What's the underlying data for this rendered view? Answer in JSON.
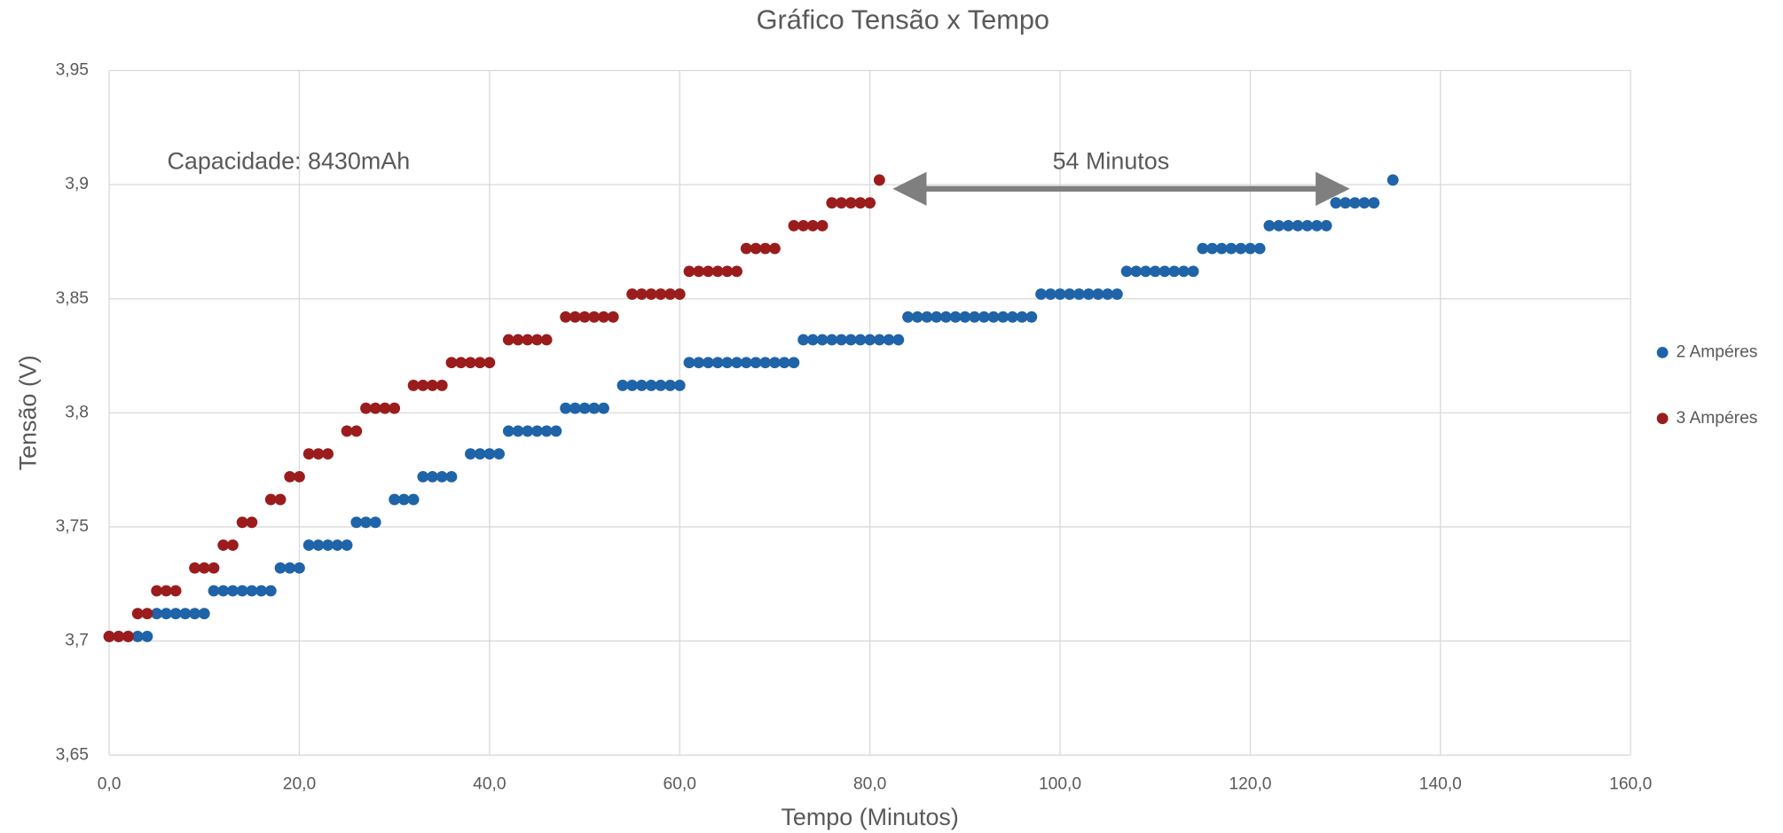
{
  "chart_data": {
    "type": "scatter",
    "title": "Gráfico Tensão x Tempo",
    "x_label": "Tempo (Minutos)",
    "y_label": "Tensão (V)",
    "annotations": [
      "Capacidade: 8430mAh",
      "54 Minutos"
    ],
    "xlim": [
      0,
      160
    ],
    "xticks": [
      {
        "value": 0,
        "label": "0,0"
      },
      {
        "value": 20,
        "label": "20,0"
      },
      {
        "value": 40,
        "label": "40,0"
      },
      {
        "value": 60,
        "label": "60,0"
      },
      {
        "value": 80,
        "label": "80,0"
      },
      {
        "value": 100,
        "label": "100,0"
      },
      {
        "value": 120,
        "label": "120,0"
      },
      {
        "value": 140,
        "label": "140,0"
      },
      {
        "value": 160,
        "label": "160,0"
      }
    ],
    "ylim": [
      3.65,
      3.95
    ],
    "yticks": [
      {
        "value": 3.65,
        "label": "3,65"
      },
      {
        "value": 3.7,
        "label": "3,7"
      },
      {
        "value": 3.75,
        "label": "3,75"
      },
      {
        "value": 3.8,
        "label": "3,8"
      },
      {
        "value": 3.85,
        "label": "3,85"
      },
      {
        "value": 3.9,
        "label": "3,9"
      },
      {
        "value": 3.95,
        "label": "3,95"
      }
    ],
    "grid": true,
    "legend": "right",
    "series": [
      {
        "name": "2 Ampéres",
        "color": "#1f63a8",
        "x": [
          0,
          1,
          2,
          3,
          4,
          5,
          6,
          7,
          8,
          9,
          10,
          11,
          12,
          13,
          14,
          15,
          16,
          17,
          18,
          19,
          20,
          21,
          22,
          23,
          24,
          25,
          26,
          27,
          28,
          30,
          31,
          32,
          33,
          34,
          35,
          36,
          38,
          39,
          40,
          41,
          42,
          43,
          44,
          45,
          46,
          47,
          48,
          49,
          50,
          51,
          52,
          54,
          55,
          56,
          57,
          58,
          59,
          60,
          61,
          62,
          63,
          64,
          65,
          66,
          67,
          68,
          69,
          70,
          71,
          72,
          73,
          74,
          75,
          76,
          77,
          78,
          79,
          80,
          81,
          82,
          83,
          84,
          85,
          86,
          87,
          88,
          89,
          90,
          91,
          92,
          93,
          94,
          95,
          96,
          97,
          98,
          99,
          100,
          101,
          102,
          103,
          104,
          105,
          106,
          107,
          108,
          109,
          110,
          111,
          112,
          113,
          114,
          115,
          116,
          117,
          118,
          119,
          120,
          121,
          122,
          123,
          124,
          125,
          126,
          127,
          128,
          129,
          130,
          131,
          132,
          133,
          135
        ],
        "values": [
          3.702,
          3.702,
          3.702,
          3.702,
          3.702,
          3.712,
          3.712,
          3.712,
          3.712,
          3.712,
          3.712,
          3.722,
          3.722,
          3.722,
          3.722,
          3.722,
          3.722,
          3.722,
          3.732,
          3.732,
          3.732,
          3.742,
          3.742,
          3.742,
          3.742,
          3.742,
          3.752,
          3.752,
          3.752,
          3.762,
          3.762,
          3.762,
          3.772,
          3.772,
          3.772,
          3.772,
          3.782,
          3.782,
          3.782,
          3.782,
          3.792,
          3.792,
          3.792,
          3.792,
          3.792,
          3.792,
          3.802,
          3.802,
          3.802,
          3.802,
          3.802,
          3.812,
          3.812,
          3.812,
          3.812,
          3.812,
          3.812,
          3.812,
          3.822,
          3.822,
          3.822,
          3.822,
          3.822,
          3.822,
          3.822,
          3.822,
          3.822,
          3.822,
          3.822,
          3.822,
          3.832,
          3.832,
          3.832,
          3.832,
          3.832,
          3.832,
          3.832,
          3.832,
          3.832,
          3.832,
          3.832,
          3.842,
          3.842,
          3.842,
          3.842,
          3.842,
          3.842,
          3.842,
          3.842,
          3.842,
          3.842,
          3.842,
          3.842,
          3.842,
          3.842,
          3.852,
          3.852,
          3.852,
          3.852,
          3.852,
          3.852,
          3.852,
          3.852,
          3.852,
          3.862,
          3.862,
          3.862,
          3.862,
          3.862,
          3.862,
          3.862,
          3.862,
          3.872,
          3.872,
          3.872,
          3.872,
          3.872,
          3.872,
          3.872,
          3.882,
          3.882,
          3.882,
          3.882,
          3.882,
          3.882,
          3.882,
          3.892,
          3.892,
          3.892,
          3.892,
          3.892,
          3.902
        ]
      },
      {
        "name": "3 Ampéres",
        "color": "#9b1c1c",
        "x": [
          0,
          1,
          2,
          3,
          4,
          5,
          6,
          7,
          9,
          10,
          11,
          12,
          13,
          14,
          15,
          17,
          18,
          19,
          20,
          21,
          22,
          23,
          25,
          26,
          27,
          28,
          29,
          30,
          32,
          33,
          34,
          35,
          36,
          37,
          38,
          39,
          40,
          42,
          43,
          44,
          45,
          46,
          48,
          49,
          50,
          51,
          52,
          53,
          55,
          56,
          57,
          58,
          59,
          60,
          61,
          62,
          63,
          64,
          65,
          66,
          67,
          68,
          69,
          70,
          72,
          73,
          74,
          75,
          76,
          77,
          78,
          79,
          80,
          81
        ],
        "values": [
          3.702,
          3.702,
          3.702,
          3.712,
          3.712,
          3.722,
          3.722,
          3.722,
          3.732,
          3.732,
          3.732,
          3.742,
          3.742,
          3.752,
          3.752,
          3.762,
          3.762,
          3.772,
          3.772,
          3.782,
          3.782,
          3.782,
          3.792,
          3.792,
          3.802,
          3.802,
          3.802,
          3.802,
          3.812,
          3.812,
          3.812,
          3.812,
          3.822,
          3.822,
          3.822,
          3.822,
          3.822,
          3.832,
          3.832,
          3.832,
          3.832,
          3.832,
          3.842,
          3.842,
          3.842,
          3.842,
          3.842,
          3.842,
          3.852,
          3.852,
          3.852,
          3.852,
          3.852,
          3.852,
          3.862,
          3.862,
          3.862,
          3.862,
          3.862,
          3.862,
          3.872,
          3.872,
          3.872,
          3.872,
          3.882,
          3.882,
          3.882,
          3.882,
          3.892,
          3.892,
          3.892,
          3.892,
          3.892,
          3.902
        ]
      }
    ]
  }
}
